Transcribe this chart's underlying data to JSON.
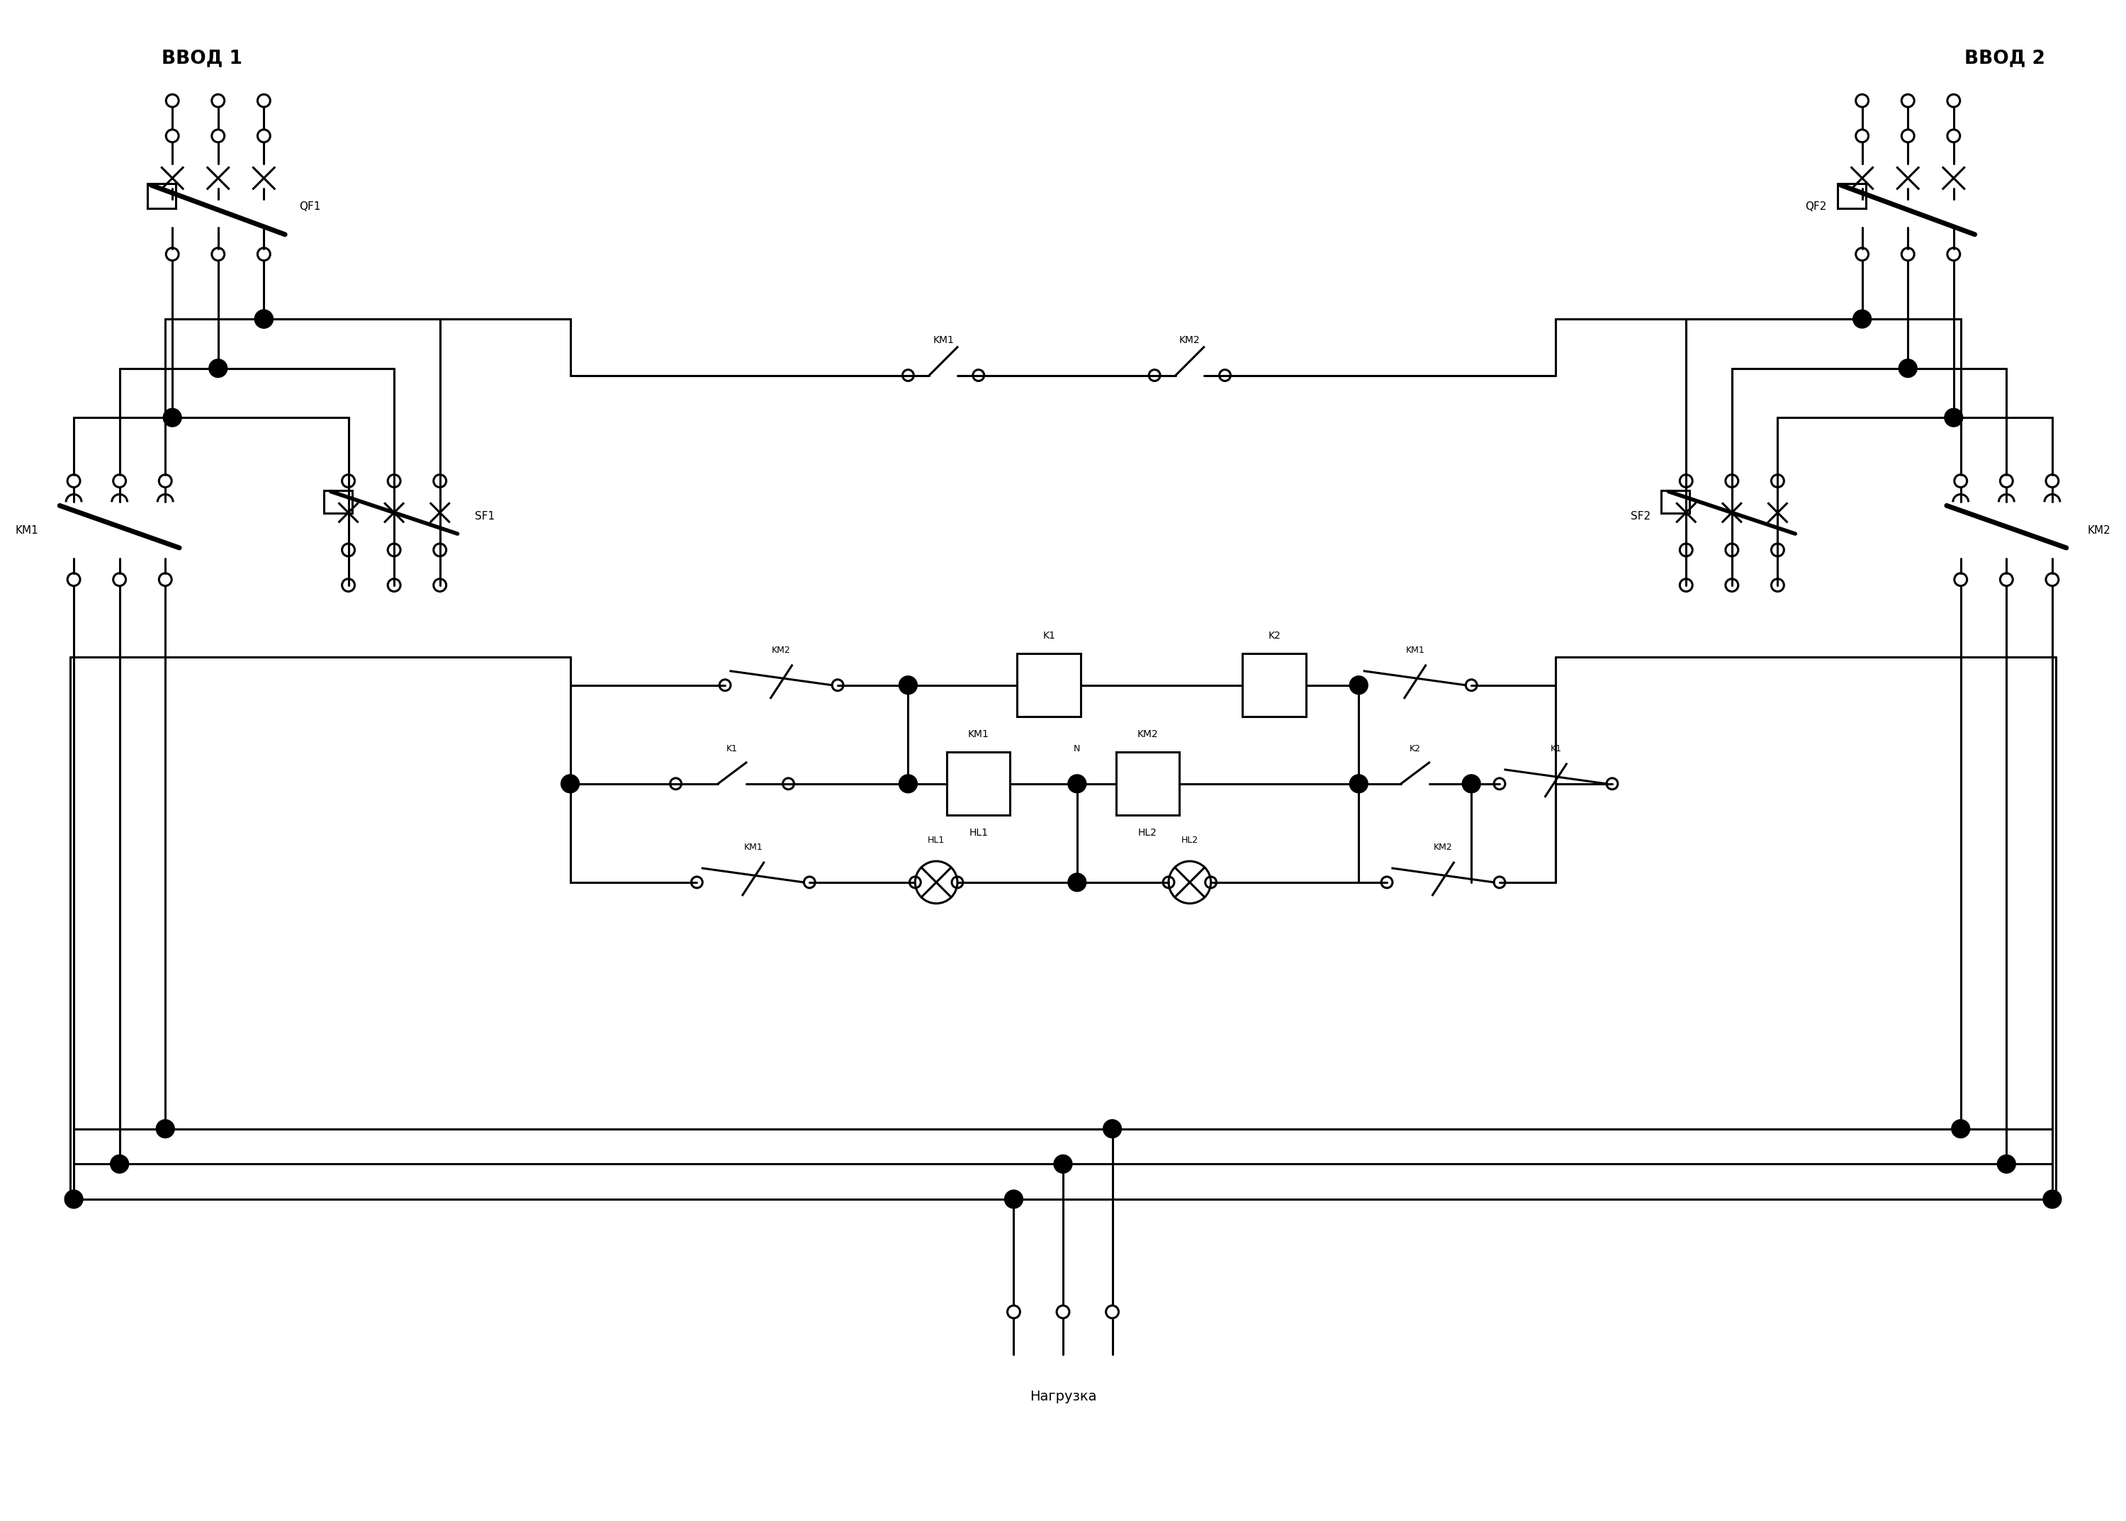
{
  "background_color": "#ffffff",
  "line_color": "#000000",
  "lw": 2.2,
  "lw_thick": 5.0,
  "fig_width": 30.0,
  "fig_height": 21.46,
  "labels": {
    "vvod1": "ВВОД 1",
    "vvod2": "ВВОД 2",
    "nagruzka": "Нагрузка",
    "QF1": "QF1",
    "QF2": "QF2",
    "KM1": "KM1",
    "KM2": "KM2",
    "SF1": "SF1",
    "SF2": "SF2",
    "K1": "K1",
    "K2": "K2",
    "HL1": "HL1",
    "HL2": "HL2",
    "N": "N"
  }
}
